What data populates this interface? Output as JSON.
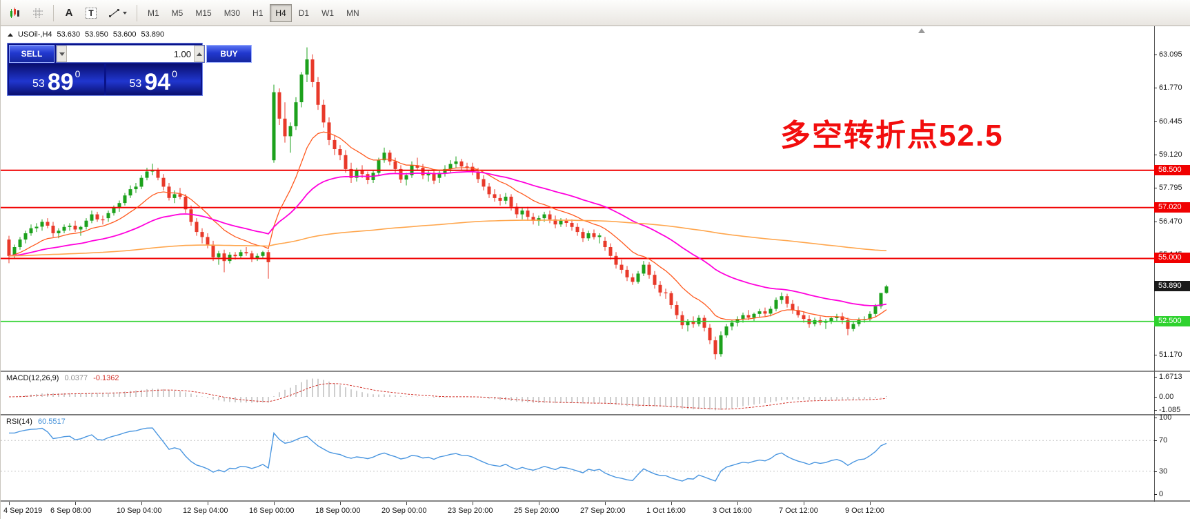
{
  "toolbar": {
    "icons": [
      {
        "name": "charts-mode-icon"
      },
      {
        "name": "grid-icon"
      },
      {
        "name": "text-label-icon",
        "glyph": "A"
      },
      {
        "name": "text-box-icon",
        "glyph": "T"
      },
      {
        "name": "line-studies-icon"
      }
    ],
    "timeframes": [
      {
        "label": "M1",
        "active": false
      },
      {
        "label": "M5",
        "active": false
      },
      {
        "label": "M15",
        "active": false
      },
      {
        "label": "M30",
        "active": false
      },
      {
        "label": "H1",
        "active": false
      },
      {
        "label": "H4",
        "active": true
      },
      {
        "label": "D1",
        "active": false
      },
      {
        "label": "W1",
        "active": false
      },
      {
        "label": "MN",
        "active": false
      }
    ]
  },
  "chart_header": {
    "symbol_period": "USOil-,H4",
    "open": "53.630",
    "high": "53.950",
    "low": "53.600",
    "close": "53.890"
  },
  "trade_panel": {
    "sell_label": "SELL",
    "buy_label": "BUY",
    "lot_value": "1.00",
    "bid_prefix": "53",
    "bid_big": "89",
    "bid_sup": "0",
    "ask_prefix": "53",
    "ask_big": "94",
    "ask_sup": "0"
  },
  "annotation": {
    "text": "多空转折点52.5",
    "color": "#f20d0d"
  },
  "chart_data": {
    "type": "candlestick",
    "title": "USOil- H4",
    "colors": {
      "up": "#1ca11c",
      "down": "#e8392a"
    },
    "price_axis": {
      "ticks": [
        {
          "price": 63.095,
          "label": "63.095"
        },
        {
          "price": 61.77,
          "label": "61.770"
        },
        {
          "price": 60.445,
          "label": "60.445"
        },
        {
          "price": 59.12,
          "label": "59.120"
        },
        {
          "price": 57.795,
          "label": "57.795"
        },
        {
          "price": 56.47,
          "label": "56.470"
        },
        {
          "price": 55.145,
          "label": "55.145"
        },
        {
          "price": 51.17,
          "label": "51.170"
        }
      ],
      "levels": [
        {
          "price": 58.5,
          "label": "58.500",
          "color": "#f00000",
          "line": true,
          "thickness": 2
        },
        {
          "price": 57.02,
          "label": "57.020",
          "color": "#f00000",
          "line": true,
          "thickness": 2
        },
        {
          "price": 55.0,
          "label": "55.000",
          "color": "#f00000",
          "line": true,
          "thickness": 2
        },
        {
          "price": 52.5,
          "label": "52.500",
          "color": "#2ed22e",
          "line": true,
          "thickness": 1.6
        }
      ],
      "current": {
        "price": 53.89,
        "label": "53.890",
        "color": "#1a1a1a"
      }
    },
    "time_axis": {
      "labels": [
        "4 Sep 2019",
        "6 Sep 08:00",
        "10 Sep 04:00",
        "12 Sep 04:00",
        "16 Sep 00:00",
        "18 Sep 00:00",
        "20 Sep 00:00",
        "23 Sep 20:00",
        "25 Sep 20:00",
        "27 Sep 20:00",
        "1 Oct 16:00",
        "3 Oct 16:00",
        "7 Oct 12:00",
        "9 Oct 12:00"
      ],
      "indices": [
        0,
        12,
        24,
        36,
        48,
        60,
        72,
        84,
        96,
        108,
        120,
        132,
        144,
        156
      ]
    },
    "overlays": [
      {
        "name": "ma-fast-line",
        "period": 13,
        "color": "#ff5a1f",
        "width": 1.3
      },
      {
        "name": "ma-mid-line",
        "period": 40,
        "color": "#ff00dc",
        "width": 1.8
      },
      {
        "name": "ma-slow-line",
        "period": 250,
        "color": "#ffa64d",
        "width": 1.6
      }
    ],
    "indicators": {
      "macd": {
        "name": "MACD(12,26,9)",
        "value_main": "0.0377",
        "value_signal": "-0.1362",
        "fast": 12,
        "slow": 26,
        "signal": 9,
        "axis": [
          {
            "value": 1.6713,
            "label": "1.6713"
          },
          {
            "value": 0,
            "label": "0.00"
          },
          {
            "value": -1.085,
            "label": "-1.085"
          }
        ]
      },
      "rsi": {
        "name": "RSI(14)",
        "value": "60.5517",
        "period": 14,
        "levels": [
          70,
          30
        ],
        "axis": [
          {
            "value": 100,
            "label": "100"
          },
          {
            "value": 70,
            "label": "70"
          },
          {
            "value": 30,
            "label": "30"
          },
          {
            "value": 0,
            "label": "0"
          }
        ]
      }
    },
    "candles": [
      [
        55.75,
        55.9,
        54.81,
        55.1
      ],
      [
        55.1,
        55.55,
        55.0,
        55.45
      ],
      [
        55.45,
        55.85,
        55.35,
        55.75
      ],
      [
        55.75,
        56.1,
        55.6,
        56.0
      ],
      [
        56.0,
        56.35,
        55.9,
        56.2
      ],
      [
        56.2,
        56.4,
        56.05,
        56.26
      ],
      [
        56.26,
        56.55,
        56.1,
        56.45
      ],
      [
        56.45,
        56.6,
        56.2,
        56.3
      ],
      [
        56.3,
        56.45,
        55.85,
        56.0
      ],
      [
        56.0,
        56.2,
        55.8,
        56.1
      ],
      [
        56.1,
        56.35,
        56.0,
        56.25
      ],
      [
        56.25,
        56.4,
        56.1,
        56.3
      ],
      [
        56.3,
        56.5,
        56.05,
        56.15
      ],
      [
        56.15,
        56.3,
        55.9,
        56.25
      ],
      [
        56.25,
        56.6,
        56.15,
        56.5
      ],
      [
        56.5,
        56.9,
        56.4,
        56.75
      ],
      [
        56.75,
        56.85,
        56.45,
        56.55
      ],
      [
        56.55,
        56.7,
        56.35,
        56.52
      ],
      [
        56.6,
        56.9,
        56.45,
        56.8
      ],
      [
        56.8,
        57.1,
        56.7,
        57.0
      ],
      [
        57.0,
        57.3,
        56.85,
        57.2
      ],
      [
        57.2,
        57.6,
        57.1,
        57.5
      ],
      [
        57.5,
        57.9,
        57.4,
        57.75
      ],
      [
        57.75,
        58.0,
        57.6,
        57.85
      ],
      [
        57.85,
        58.3,
        57.75,
        58.2
      ],
      [
        58.2,
        58.6,
        58.1,
        58.45
      ],
      [
        58.45,
        58.76,
        58.3,
        58.5
      ],
      [
        58.5,
        58.6,
        58.1,
        58.2
      ],
      [
        58.2,
        58.35,
        57.7,
        57.85
      ],
      [
        57.85,
        58.0,
        57.3,
        57.4
      ],
      [
        57.4,
        57.7,
        57.2,
        57.55
      ],
      [
        57.55,
        57.8,
        57.35,
        57.45
      ],
      [
        57.45,
        57.55,
        56.8,
        56.95
      ],
      [
        56.95,
        57.1,
        56.3,
        56.45
      ],
      [
        56.45,
        56.6,
        55.9,
        56.05
      ],
      [
        56.05,
        56.2,
        55.6,
        55.85
      ],
      [
        55.85,
        56.0,
        55.4,
        55.55
      ],
      [
        55.55,
        55.7,
        54.9,
        55.05
      ],
      [
        55.05,
        55.3,
        54.75,
        55.2
      ],
      [
        55.2,
        55.35,
        54.45,
        54.9
      ],
      [
        54.9,
        55.25,
        54.8,
        55.15
      ],
      [
        55.15,
        55.25,
        54.95,
        55.09
      ],
      [
        55.09,
        55.35,
        55.0,
        55.25
      ],
      [
        55.25,
        55.45,
        55.1,
        55.2
      ],
      [
        55.2,
        55.3,
        54.85,
        55.0
      ],
      [
        55.0,
        55.2,
        54.9,
        55.1
      ],
      [
        55.1,
        55.3,
        55.0,
        55.25
      ],
      [
        55.25,
        55.35,
        54.2,
        54.85
      ],
      [
        58.9,
        61.9,
        58.8,
        61.6
      ],
      [
        61.6,
        61.75,
        60.3,
        60.55
      ],
      [
        60.55,
        61.2,
        59.6,
        59.85
      ],
      [
        59.85,
        60.4,
        59.2,
        60.25
      ],
      [
        60.25,
        61.4,
        60.1,
        61.2
      ],
      [
        61.2,
        62.4,
        61.0,
        62.3
      ],
      [
        62.3,
        63.38,
        62.0,
        62.9
      ],
      [
        62.9,
        63.1,
        61.8,
        62.0
      ],
      [
        62.0,
        62.2,
        60.9,
        61.1
      ],
      [
        61.1,
        61.3,
        60.2,
        60.4
      ],
      [
        60.4,
        60.6,
        59.5,
        59.7
      ],
      [
        59.7,
        59.9,
        59.1,
        59.34
      ],
      [
        59.34,
        59.5,
        58.9,
        59.1
      ],
      [
        59.1,
        59.3,
        58.4,
        58.55
      ],
      [
        58.55,
        58.8,
        58.0,
        58.2
      ],
      [
        58.2,
        58.6,
        58.05,
        58.5
      ],
      [
        58.5,
        58.7,
        58.2,
        58.35
      ],
      [
        58.35,
        58.45,
        57.95,
        58.11
      ],
      [
        58.11,
        58.5,
        58.0,
        58.4
      ],
      [
        58.4,
        59.0,
        58.3,
        58.9
      ],
      [
        58.9,
        59.4,
        58.8,
        59.2
      ],
      [
        59.2,
        59.3,
        58.7,
        58.85
      ],
      [
        58.85,
        59.0,
        58.4,
        58.55
      ],
      [
        58.55,
        58.7,
        58.0,
        58.13
      ],
      [
        58.13,
        58.4,
        57.9,
        58.3
      ],
      [
        58.3,
        58.85,
        58.2,
        58.7
      ],
      [
        58.7,
        59.0,
        58.5,
        58.6
      ],
      [
        58.6,
        58.75,
        58.15,
        58.3
      ],
      [
        58.3,
        58.5,
        58.05,
        58.4
      ],
      [
        58.4,
        58.55,
        57.95,
        58.09
      ],
      [
        58.2,
        58.5,
        58.0,
        58.4
      ],
      [
        58.4,
        58.7,
        58.25,
        58.55
      ],
      [
        58.55,
        58.9,
        58.4,
        58.75
      ],
      [
        58.75,
        59.05,
        58.6,
        58.85
      ],
      [
        58.85,
        58.95,
        58.5,
        58.65
      ],
      [
        58.65,
        58.8,
        58.45,
        58.64
      ],
      [
        58.64,
        58.8,
        58.3,
        58.45
      ],
      [
        58.45,
        58.6,
        58.0,
        58.15
      ],
      [
        58.15,
        58.3,
        57.7,
        57.85
      ],
      [
        57.85,
        58.0,
        57.4,
        57.55
      ],
      [
        57.55,
        57.75,
        57.25,
        57.4
      ],
      [
        57.4,
        57.55,
        57.1,
        57.29
      ],
      [
        57.29,
        57.6,
        57.15,
        57.45
      ],
      [
        57.45,
        57.55,
        56.9,
        57.05
      ],
      [
        57.05,
        57.2,
        56.6,
        56.75
      ],
      [
        56.75,
        57.0,
        56.55,
        56.9
      ],
      [
        56.9,
        57.05,
        56.5,
        56.65
      ],
      [
        56.65,
        56.8,
        56.35,
        56.49
      ],
      [
        56.49,
        56.7,
        56.3,
        56.6
      ],
      [
        56.6,
        56.85,
        56.45,
        56.75
      ],
      [
        56.75,
        56.9,
        56.4,
        56.55
      ],
      [
        56.55,
        56.7,
        56.2,
        56.35
      ],
      [
        56.35,
        56.6,
        56.25,
        56.5
      ],
      [
        56.5,
        56.6,
        56.25,
        56.41
      ],
      [
        56.41,
        56.55,
        56.1,
        56.25
      ],
      [
        56.25,
        56.4,
        55.9,
        56.05
      ],
      [
        56.05,
        56.2,
        55.65,
        55.8
      ],
      [
        55.8,
        56.1,
        55.7,
        56.0
      ],
      [
        56.0,
        56.15,
        55.75,
        55.85
      ],
      [
        55.85,
        56.0,
        55.6,
        55.91
      ],
      [
        55.7,
        55.85,
        55.3,
        55.45
      ],
      [
        55.45,
        55.6,
        54.95,
        55.1
      ],
      [
        55.1,
        55.25,
        54.6,
        54.75
      ],
      [
        54.75,
        54.95,
        54.4,
        54.55
      ],
      [
        54.55,
        54.7,
        54.1,
        54.25
      ],
      [
        54.25,
        54.4,
        53.95,
        54.07
      ],
      [
        54.07,
        54.5,
        54.0,
        54.4
      ],
      [
        54.4,
        54.9,
        54.3,
        54.75
      ],
      [
        54.75,
        54.85,
        54.2,
        54.35
      ],
      [
        54.35,
        54.5,
        53.8,
        53.95
      ],
      [
        53.95,
        54.1,
        53.5,
        53.65
      ],
      [
        53.65,
        53.8,
        53.4,
        53.62
      ],
      [
        53.62,
        53.7,
        53.0,
        53.15
      ],
      [
        53.15,
        53.3,
        52.6,
        52.75
      ],
      [
        52.75,
        52.9,
        52.2,
        52.35
      ],
      [
        52.35,
        52.6,
        52.1,
        52.5
      ],
      [
        52.5,
        52.7,
        52.25,
        52.4
      ],
      [
        52.4,
        52.75,
        52.3,
        52.64
      ],
      [
        52.64,
        52.75,
        52.1,
        52.25
      ],
      [
        52.25,
        52.4,
        51.6,
        51.75
      ],
      [
        51.75,
        51.9,
        50.99,
        51.2
      ],
      [
        51.2,
        52.1,
        51.1,
        51.95
      ],
      [
        51.95,
        52.4,
        51.85,
        52.3
      ],
      [
        52.3,
        52.55,
        52.15,
        52.45
      ],
      [
        52.45,
        52.7,
        52.3,
        52.6
      ],
      [
        52.6,
        52.85,
        52.45,
        52.75
      ],
      [
        52.75,
        52.95,
        52.55,
        52.65
      ],
      [
        52.65,
        52.85,
        52.5,
        52.8
      ],
      [
        52.8,
        53.0,
        52.65,
        52.9
      ],
      [
        52.9,
        53.05,
        52.7,
        52.81
      ],
      [
        52.81,
        53.1,
        52.7,
        53.0
      ],
      [
        53.0,
        53.45,
        52.9,
        53.35
      ],
      [
        53.35,
        53.65,
        53.2,
        53.5
      ],
      [
        53.5,
        53.6,
        53.05,
        53.2
      ],
      [
        53.2,
        53.35,
        52.8,
        52.95
      ],
      [
        52.95,
        53.1,
        52.65,
        52.75
      ],
      [
        52.75,
        52.9,
        52.45,
        52.6
      ],
      [
        52.6,
        52.75,
        52.25,
        52.4
      ],
      [
        52.4,
        52.65,
        52.3,
        52.55
      ],
      [
        52.55,
        52.7,
        52.35,
        52.45
      ],
      [
        52.45,
        52.6,
        52.2,
        52.5
      ],
      [
        52.5,
        52.7,
        52.4,
        52.63
      ],
      [
        52.63,
        52.8,
        52.5,
        52.7
      ],
      [
        52.7,
        52.85,
        52.4,
        52.55
      ],
      [
        52.55,
        52.65,
        51.95,
        52.2
      ],
      [
        52.2,
        52.5,
        52.1,
        52.4
      ],
      [
        52.4,
        52.65,
        52.3,
        52.55
      ],
      [
        52.55,
        52.7,
        52.45,
        52.59
      ],
      [
        52.59,
        52.9,
        52.5,
        52.8
      ],
      [
        52.8,
        53.2,
        52.7,
        53.1
      ],
      [
        53.1,
        53.63,
        53.0,
        53.63
      ],
      [
        53.63,
        53.95,
        53.6,
        53.89
      ]
    ]
  }
}
